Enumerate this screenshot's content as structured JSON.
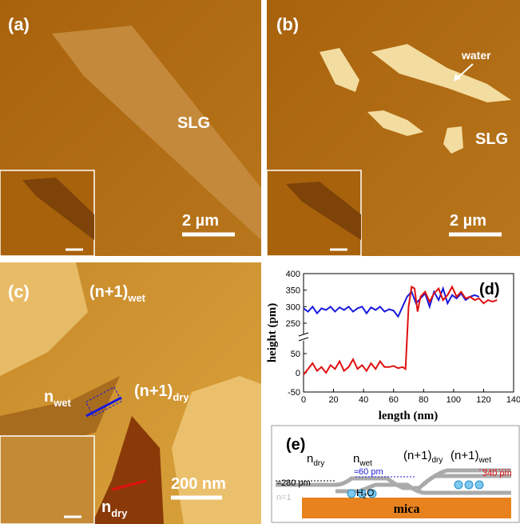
{
  "panels": {
    "a": {
      "label": "(a)",
      "text": "SLG",
      "scale": "2 µm"
    },
    "b": {
      "label": "(b)",
      "text": "SLG",
      "annotation": "water",
      "scale": "2 µm"
    },
    "c": {
      "label": "(c)",
      "labels": [
        {
          "base": "(n+1)",
          "sub": "wet"
        },
        {
          "base": "n",
          "sub": "wet"
        },
        {
          "base": "(n+1)",
          "sub": "dry"
        },
        {
          "base": "n",
          "sub": "dry"
        }
      ],
      "scale": "200 nm"
    },
    "e": {
      "label": "(e)",
      "layers": [
        {
          "base": "n",
          "sub": "dry"
        },
        {
          "base": "n",
          "sub": "wet"
        },
        {
          "base": "(n+1)",
          "sub": "dry"
        },
        {
          "base": "(n+1)",
          "sub": "wet"
        }
      ],
      "step_wet": "≈60 pm",
      "step_total": "340 pm",
      "base_height": "≈280 pm",
      "n1": "n=1",
      "water": {
        "base": "H",
        "sub": "2",
        "tail": "O"
      },
      "substrate": "mica"
    }
  },
  "chart_data": {
    "type": "line",
    "label": "(d)",
    "x_label": "length (nm)",
    "y_label": "height (pm)",
    "xlim": [
      0,
      140
    ],
    "xticks": [
      0,
      20,
      40,
      60,
      80,
      100,
      120,
      140
    ],
    "ylim": [
      -50,
      400
    ],
    "ybreak": [
      50,
      250
    ],
    "yticks": [
      -50,
      0,
      50,
      250,
      300,
      350,
      400
    ],
    "series": [
      {
        "color": "#1a1adb",
        "x": [
          0,
          3,
          6,
          9,
          12,
          15,
          18,
          21,
          24,
          27,
          30,
          33,
          36,
          39,
          42,
          45,
          48,
          51,
          54,
          57,
          60,
          63,
          66,
          69,
          72,
          75,
          78,
          81,
          84,
          87,
          90,
          93,
          96,
          99,
          102,
          105,
          108,
          111,
          114,
          117
        ],
        "values": [
          295,
          285,
          300,
          280,
          295,
          290,
          300,
          285,
          298,
          290,
          300,
          285,
          295,
          300,
          280,
          298,
          290,
          300,
          285,
          292,
          288,
          270,
          300,
          330,
          345,
          310,
          325,
          340,
          300,
          345,
          320,
          355,
          310,
          335,
          325,
          340,
          320,
          330,
          335,
          330
        ]
      },
      {
        "color": "#e01010",
        "x": [
          0,
          3,
          6,
          9,
          12,
          15,
          18,
          21,
          24,
          27,
          30,
          33,
          36,
          39,
          42,
          45,
          48,
          51,
          54,
          57,
          60,
          63,
          66,
          68,
          70,
          72,
          74,
          76,
          78,
          81,
          84,
          87,
          90,
          93,
          96,
          99,
          102,
          105,
          108,
          111,
          114,
          117,
          120,
          123,
          126,
          129
        ],
        "values": [
          -5,
          10,
          25,
          5,
          15,
          0,
          20,
          10,
          30,
          5,
          15,
          35,
          10,
          20,
          5,
          25,
          10,
          30,
          15,
          15,
          18,
          12,
          15,
          10,
          300,
          360,
          355,
          285,
          330,
          345,
          315,
          340,
          355,
          320,
          335,
          360,
          330,
          345,
          325,
          330,
          320,
          325,
          310,
          320,
          315,
          320
        ]
      }
    ]
  }
}
